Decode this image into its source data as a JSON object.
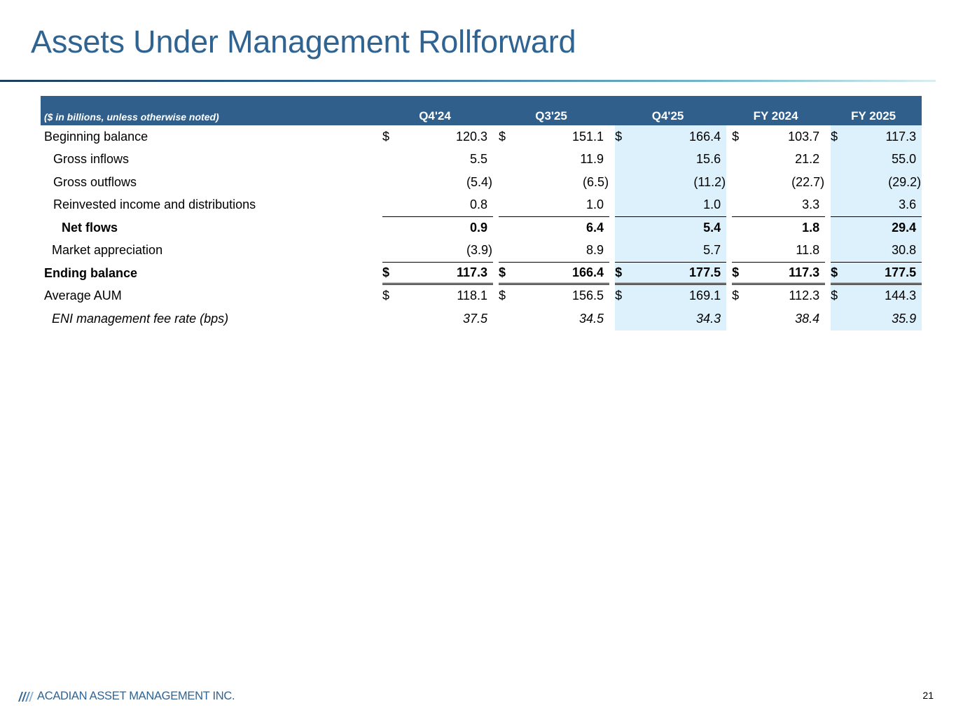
{
  "title": "Assets Under Management Rollforward",
  "colors": {
    "title": "#2f6392",
    "header_bg": "#2f5f8a",
    "highlight": "#ddf1fc"
  },
  "table": {
    "units_note": "($ in billions, unless otherwise noted)",
    "columns": [
      "Q4'24",
      "Q3'25",
      "Q4'25",
      "FY 2024",
      "FY 2025"
    ],
    "highlighted_columns": [
      "Q4'25",
      "FY 2025"
    ],
    "rows": [
      {
        "label": "Beginning balance",
        "style": "normal",
        "currency": true,
        "values": [
          "120.3",
          "151.1",
          "166.4",
          "103.7",
          "117.3"
        ]
      },
      {
        "label": "Gross inflows",
        "style": "indent",
        "currency": false,
        "values": [
          "5.5",
          "11.9",
          "15.6",
          "21.2",
          "55.0"
        ]
      },
      {
        "label": "Gross outflows",
        "style": "indent",
        "currency": false,
        "values": [
          "(5.4)",
          "(6.5)",
          "(11.2)",
          "(22.7)",
          "(29.2)"
        ]
      },
      {
        "label": "Reinvested income and distributions",
        "style": "indent",
        "currency": false,
        "values": [
          "0.8",
          "1.0",
          "1.0",
          "3.3",
          "3.6"
        ]
      },
      {
        "label": "Net flows",
        "style": "bold-indent",
        "currency": false,
        "values": [
          "0.9",
          "6.4",
          "5.4",
          "1.8",
          "29.4"
        ]
      },
      {
        "label": "Market appreciation",
        "style": "indent",
        "currency": false,
        "values": [
          "(3.9)",
          "8.9",
          "5.7",
          "11.8",
          "30.8"
        ]
      },
      {
        "label": "Ending balance",
        "style": "bold",
        "currency": true,
        "values": [
          "117.3",
          "166.4",
          "177.5",
          "117.3",
          "177.5"
        ]
      },
      {
        "label": "Average AUM",
        "style": "normal",
        "currency": true,
        "values": [
          "118.1",
          "156.5",
          "169.1",
          "112.3",
          "144.3"
        ]
      },
      {
        "label": "ENI management fee rate (bps)",
        "style": "italic",
        "currency": false,
        "values": [
          "37.5",
          "34.5",
          "34.3",
          "38.4",
          "35.9"
        ]
      }
    ],
    "currency_symbol": "$"
  },
  "footer": {
    "company": "ACADIAN ASSET MANAGEMENT INC.",
    "page_number": "21"
  }
}
